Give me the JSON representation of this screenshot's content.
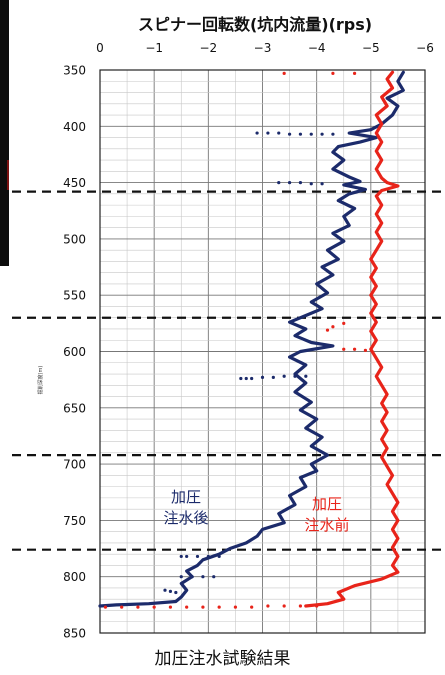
{
  "chart_data": {
    "type": "line",
    "title": "スピナー回転数(坑内流量)(rps)",
    "ylabel": "掘削深度(m)",
    "x_ticks": [
      "0",
      "−1",
      "−2",
      "−3",
      "−4",
      "−5",
      "−6"
    ],
    "y_ticks": [
      "350",
      "400",
      "450",
      "500",
      "550",
      "600",
      "650",
      "700",
      "750",
      "800",
      "850"
    ],
    "xlim": [
      0,
      -6
    ],
    "ylim": [
      350,
      850
    ],
    "y_inverted": true,
    "grid": true,
    "dashed_lines": [
      458,
      570,
      692,
      776
    ],
    "series": [
      {
        "name": "加圧\n注水後",
        "color": "#1c2b6b",
        "points": [
          [
            -5.6,
            352
          ],
          [
            -5.5,
            360
          ],
          [
            -5.6,
            368
          ],
          [
            -5.3,
            375
          ],
          [
            -5.5,
            382
          ],
          [
            -5.4,
            390
          ],
          [
            -5.2,
            398
          ],
          [
            -5.0,
            403
          ],
          [
            -4.6,
            406
          ],
          [
            -5.1,
            410
          ],
          [
            -4.8,
            414
          ],
          [
            -4.4,
            418
          ],
          [
            -4.3,
            423
          ],
          [
            -4.5,
            430
          ],
          [
            -4.3,
            438
          ],
          [
            -4.6,
            445
          ],
          [
            -4.8,
            449
          ],
          [
            -4.5,
            452
          ],
          [
            -4.9,
            456
          ],
          [
            -4.6,
            460
          ],
          [
            -4.4,
            466
          ],
          [
            -4.7,
            473
          ],
          [
            -4.5,
            480
          ],
          [
            -4.6,
            488
          ],
          [
            -4.3,
            495
          ],
          [
            -4.5,
            502
          ],
          [
            -4.2,
            510
          ],
          [
            -4.4,
            518
          ],
          [
            -4.1,
            525
          ],
          [
            -4.3,
            532
          ],
          [
            -4.0,
            540
          ],
          [
            -4.2,
            548
          ],
          [
            -3.9,
            556
          ],
          [
            -4.1,
            562
          ],
          [
            -3.8,
            568
          ],
          [
            -3.5,
            574
          ],
          [
            -3.8,
            580
          ],
          [
            -3.6,
            586
          ],
          [
            -3.9,
            592
          ],
          [
            -4.3,
            595
          ],
          [
            -3.7,
            600
          ],
          [
            -3.5,
            605
          ],
          [
            -3.8,
            612
          ],
          [
            -3.6,
            620
          ],
          [
            -3.8,
            628
          ],
          [
            -3.6,
            636
          ],
          [
            -3.9,
            645
          ],
          [
            -3.7,
            652
          ],
          [
            -4.0,
            660
          ],
          [
            -3.8,
            668
          ],
          [
            -4.1,
            676
          ],
          [
            -3.9,
            684
          ],
          [
            -4.2,
            692
          ],
          [
            -3.9,
            700
          ],
          [
            -4.0,
            706
          ],
          [
            -3.7,
            712
          ],
          [
            -3.8,
            720
          ],
          [
            -3.5,
            728
          ],
          [
            -3.6,
            736
          ],
          [
            -3.3,
            744
          ],
          [
            -3.4,
            752
          ],
          [
            -3.0,
            758
          ],
          [
            -2.9,
            764
          ],
          [
            -2.7,
            770
          ],
          [
            -2.4,
            775
          ],
          [
            -2.2,
            780
          ],
          [
            -1.9,
            785
          ],
          [
            -1.8,
            790
          ],
          [
            -1.6,
            795
          ],
          [
            -1.7,
            800
          ],
          [
            -1.5,
            806
          ],
          [
            -1.6,
            812
          ],
          [
            -1.5,
            818
          ],
          [
            -1.4,
            822
          ],
          [
            -0.9,
            824
          ],
          [
            -0.3,
            825
          ],
          [
            0.0,
            826
          ]
        ],
        "scatter": [
          [
            -2.9,
            406
          ],
          [
            -3.1,
            406
          ],
          [
            -3.3,
            406
          ],
          [
            -3.5,
            407
          ],
          [
            -3.7,
            407
          ],
          [
            -3.9,
            407
          ],
          [
            -4.1,
            407
          ],
          [
            -4.3,
            407
          ],
          [
            -3.3,
            450
          ],
          [
            -3.5,
            450
          ],
          [
            -3.7,
            450
          ],
          [
            -3.9,
            451
          ],
          [
            -4.1,
            451
          ],
          [
            -2.6,
            624
          ],
          [
            -2.7,
            624
          ],
          [
            -2.8,
            624
          ],
          [
            -3.0,
            623
          ],
          [
            -3.2,
            623
          ],
          [
            -3.4,
            622
          ],
          [
            -3.6,
            622
          ],
          [
            -3.8,
            622
          ],
          [
            -1.5,
            782
          ],
          [
            -1.6,
            782
          ],
          [
            -1.8,
            782
          ],
          [
            -2.0,
            782
          ],
          [
            -2.2,
            782
          ],
          [
            -1.5,
            800
          ],
          [
            -1.7,
            800
          ],
          [
            -1.9,
            800
          ],
          [
            -2.1,
            800
          ],
          [
            -1.2,
            812
          ],
          [
            -1.3,
            813
          ],
          [
            -1.4,
            814
          ]
        ]
      },
      {
        "name": "加圧\n注水前",
        "color": "#e8241a",
        "points": [
          [
            -5.4,
            352
          ],
          [
            -5.3,
            358
          ],
          [
            -5.4,
            366
          ],
          [
            -5.2,
            374
          ],
          [
            -5.3,
            382
          ],
          [
            -5.1,
            390
          ],
          [
            -5.2,
            398
          ],
          [
            -5.1,
            406
          ],
          [
            -5.2,
            414
          ],
          [
            -5.1,
            422
          ],
          [
            -5.2,
            430
          ],
          [
            -5.1,
            438
          ],
          [
            -5.2,
            446
          ],
          [
            -5.3,
            450
          ],
          [
            -5.5,
            453
          ],
          [
            -5.2,
            457
          ],
          [
            -5.1,
            462
          ],
          [
            -5.2,
            470
          ],
          [
            -5.1,
            478
          ],
          [
            -5.2,
            486
          ],
          [
            -5.1,
            494
          ],
          [
            -5.2,
            502
          ],
          [
            -5.1,
            510
          ],
          [
            -5.0,
            518
          ],
          [
            -5.1,
            526
          ],
          [
            -5.0,
            534
          ],
          [
            -5.1,
            542
          ],
          [
            -5.0,
            550
          ],
          [
            -5.1,
            558
          ],
          [
            -5.0,
            566
          ],
          [
            -5.1,
            574
          ],
          [
            -5.0,
            582
          ],
          [
            -5.1,
            590
          ],
          [
            -5.0,
            598
          ],
          [
            -5.1,
            606
          ],
          [
            -5.2,
            614
          ],
          [
            -5.1,
            622
          ],
          [
            -5.2,
            630
          ],
          [
            -5.3,
            638
          ],
          [
            -5.2,
            646
          ],
          [
            -5.3,
            654
          ],
          [
            -5.2,
            662
          ],
          [
            -5.3,
            670
          ],
          [
            -5.2,
            678
          ],
          [
            -5.3,
            686
          ],
          [
            -5.2,
            694
          ],
          [
            -5.3,
            702
          ],
          [
            -5.4,
            710
          ],
          [
            -5.3,
            718
          ],
          [
            -5.4,
            726
          ],
          [
            -5.5,
            734
          ],
          [
            -5.4,
            742
          ],
          [
            -5.5,
            750
          ],
          [
            -5.4,
            758
          ],
          [
            -5.5,
            766
          ],
          [
            -5.4,
            774
          ],
          [
            -5.5,
            782
          ],
          [
            -5.4,
            790
          ],
          [
            -5.5,
            796
          ],
          [
            -5.2,
            802
          ],
          [
            -4.7,
            808
          ],
          [
            -4.4,
            814
          ],
          [
            -4.5,
            820
          ],
          [
            -4.2,
            824
          ],
          [
            -3.8,
            826
          ]
        ],
        "scatter": [
          [
            -3.4,
            353
          ],
          [
            -4.3,
            353
          ],
          [
            -4.7,
            353
          ],
          [
            -4.5,
            575
          ],
          [
            -4.3,
            578
          ],
          [
            -4.2,
            581
          ],
          [
            -4.5,
            598
          ],
          [
            -4.7,
            598
          ],
          [
            -4.9,
            599
          ],
          [
            -0.1,
            827
          ],
          [
            -0.4,
            827
          ],
          [
            -0.7,
            827
          ],
          [
            -1.0,
            827
          ],
          [
            -1.3,
            827
          ],
          [
            -1.6,
            827
          ],
          [
            -1.9,
            827
          ],
          [
            -2.2,
            827
          ],
          [
            -2.5,
            827
          ],
          [
            -2.8,
            827
          ],
          [
            -3.1,
            826
          ],
          [
            -3.4,
            826
          ],
          [
            -3.7,
            826
          ],
          [
            -4.0,
            826
          ]
        ]
      }
    ],
    "annotations": [
      {
        "text": "加圧\n注水後",
        "color": "#1c2b6b"
      },
      {
        "text": "加圧\n注水前",
        "color": "#e8241a"
      }
    ]
  },
  "caption": "加圧注水試験結果"
}
